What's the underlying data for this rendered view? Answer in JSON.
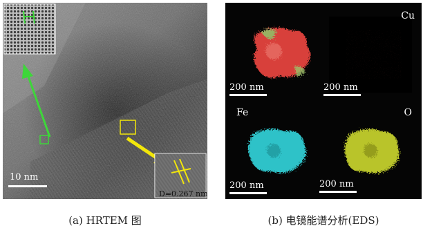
{
  "panel_a": {
    "scale_label": "10 nm",
    "d_spacing_label": "D=0.267 nm",
    "caption": "(a) HRTEM 图",
    "colors": {
      "inset_green": "#3ed63a",
      "inset_yellow": "#f2e60a"
    }
  },
  "panel_b": {
    "caption": "(b) 电镜能谱分析(EDS)",
    "maps": [
      {
        "element": "",
        "scale_label": "200 nm",
        "color": "#e23a2c"
      },
      {
        "element": "Cu",
        "scale_label": "200 nm",
        "color": "#8a1a12"
      },
      {
        "element": "Fe",
        "scale_label": "200 nm",
        "color": "#2ec2c8"
      },
      {
        "element": "O",
        "scale_label": "200 nm",
        "color": "#b9c42a"
      }
    ]
  }
}
